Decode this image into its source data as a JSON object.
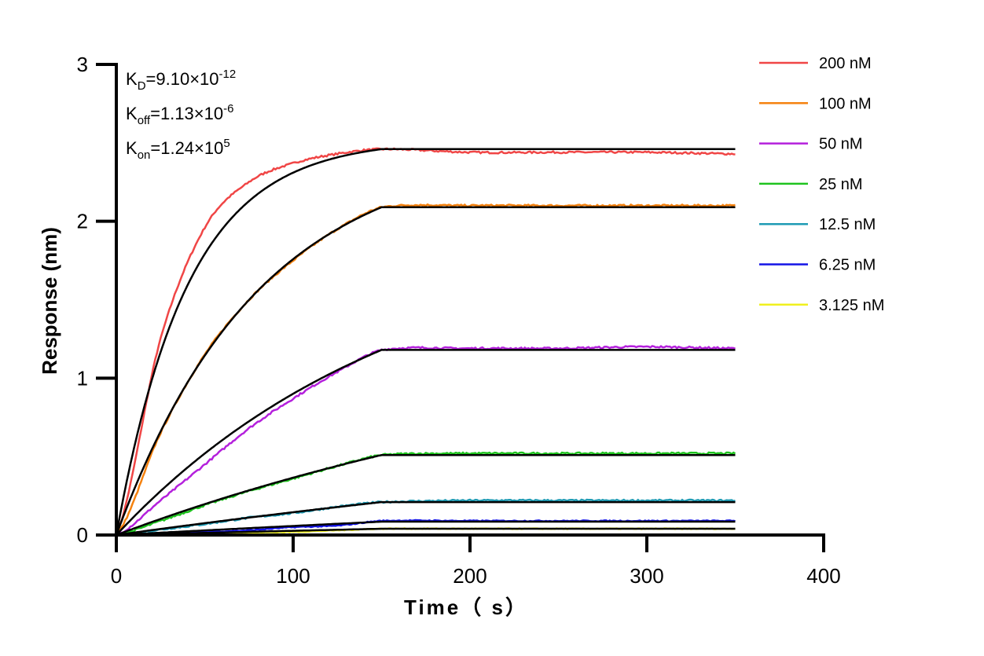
{
  "chart_data": {
    "type": "line",
    "xlabel": "Time（ s）",
    "ylabel": "Response (nm)",
    "xlim": [
      0,
      400
    ],
    "ylim": [
      0,
      3
    ],
    "xticks": [
      0,
      100,
      200,
      300,
      400
    ],
    "yticks": [
      0,
      1,
      2,
      3
    ],
    "grid": false,
    "legend_position": "top-right",
    "annotations": {
      "kd": {
        "label": "K",
        "sub": "D",
        "value": "=9.10×10",
        "exp": "-12"
      },
      "koff": {
        "label": "K",
        "sub": "off",
        "value": "=1.13×10",
        "exp": "-6"
      },
      "kon": {
        "label": "K",
        "sub": "on",
        "value": "=1.24×10",
        "exp": "5"
      }
    },
    "association_end": 150,
    "kon": 124000,
    "fit_color": "#000000",
    "x": [
      0,
      25,
      50,
      75,
      100,
      125,
      150,
      200,
      250,
      300,
      350
    ],
    "series": [
      {
        "name": "200 nM",
        "conc_nM": 200,
        "color": "#f04646",
        "fit_plateau": 2.46,
        "values": [
          0,
          1.25,
          1.96,
          2.25,
          2.37,
          2.43,
          2.46,
          2.44,
          2.44,
          2.44,
          2.43
        ]
      },
      {
        "name": "100 nM",
        "conc_nM": 100,
        "color": "#f5820f",
        "fit_plateau": 2.09,
        "values": [
          0,
          0.65,
          1.15,
          1.5,
          1.75,
          1.95,
          2.09,
          2.1,
          2.1,
          2.1,
          2.1
        ]
      },
      {
        "name": "50 nM",
        "conc_nM": 50,
        "color": "#b420dc",
        "fit_plateau": 1.18,
        "values": [
          0,
          0.22,
          0.45,
          0.68,
          0.87,
          1.04,
          1.18,
          1.19,
          1.19,
          1.2,
          1.19
        ]
      },
      {
        "name": "25 nM",
        "conc_nM": 25,
        "color": "#1ec31e",
        "fit_plateau": 0.51,
        "values": [
          0,
          0.09,
          0.19,
          0.28,
          0.36,
          0.44,
          0.51,
          0.52,
          0.52,
          0.52,
          0.52
        ]
      },
      {
        "name": "12.5 nM",
        "conc_nM": 12.5,
        "color": "#1e9bb4",
        "fit_plateau": 0.21,
        "values": [
          0,
          0.035,
          0.07,
          0.11,
          0.14,
          0.18,
          0.21,
          0.22,
          0.22,
          0.22,
          0.22
        ]
      },
      {
        "name": "6.25 nM",
        "conc_nM": 6.25,
        "color": "#1414e6",
        "fit_plateau": 0.085,
        "values": [
          0,
          0.01,
          0.02,
          0.03,
          0.05,
          0.06,
          0.09,
          0.09,
          0.09,
          0.09,
          0.09
        ]
      },
      {
        "name": "3.125 nM",
        "conc_nM": 3.125,
        "color": "#f0f01e",
        "fit_plateau": 0.04,
        "values": [
          0,
          0.005,
          0.01,
          0.015,
          0.02,
          0.03,
          0.04,
          0.04,
          0.04,
          0.04,
          0.04
        ]
      }
    ]
  }
}
